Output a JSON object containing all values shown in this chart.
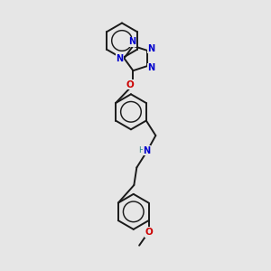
{
  "background_color": "#e6e6e6",
  "bond_color": "#1a1a1a",
  "nitrogen_color": "#0000cc",
  "oxygen_color": "#cc0000",
  "carbon_color": "#1a1a1a",
  "figsize": [
    3.0,
    3.0
  ],
  "dpi": 100,
  "xlim": [
    0,
    10
  ],
  "ylim": [
    0,
    10
  ],
  "bond_lw": 1.4,
  "ring_r": 0.65,
  "font_size_atom": 7.0
}
